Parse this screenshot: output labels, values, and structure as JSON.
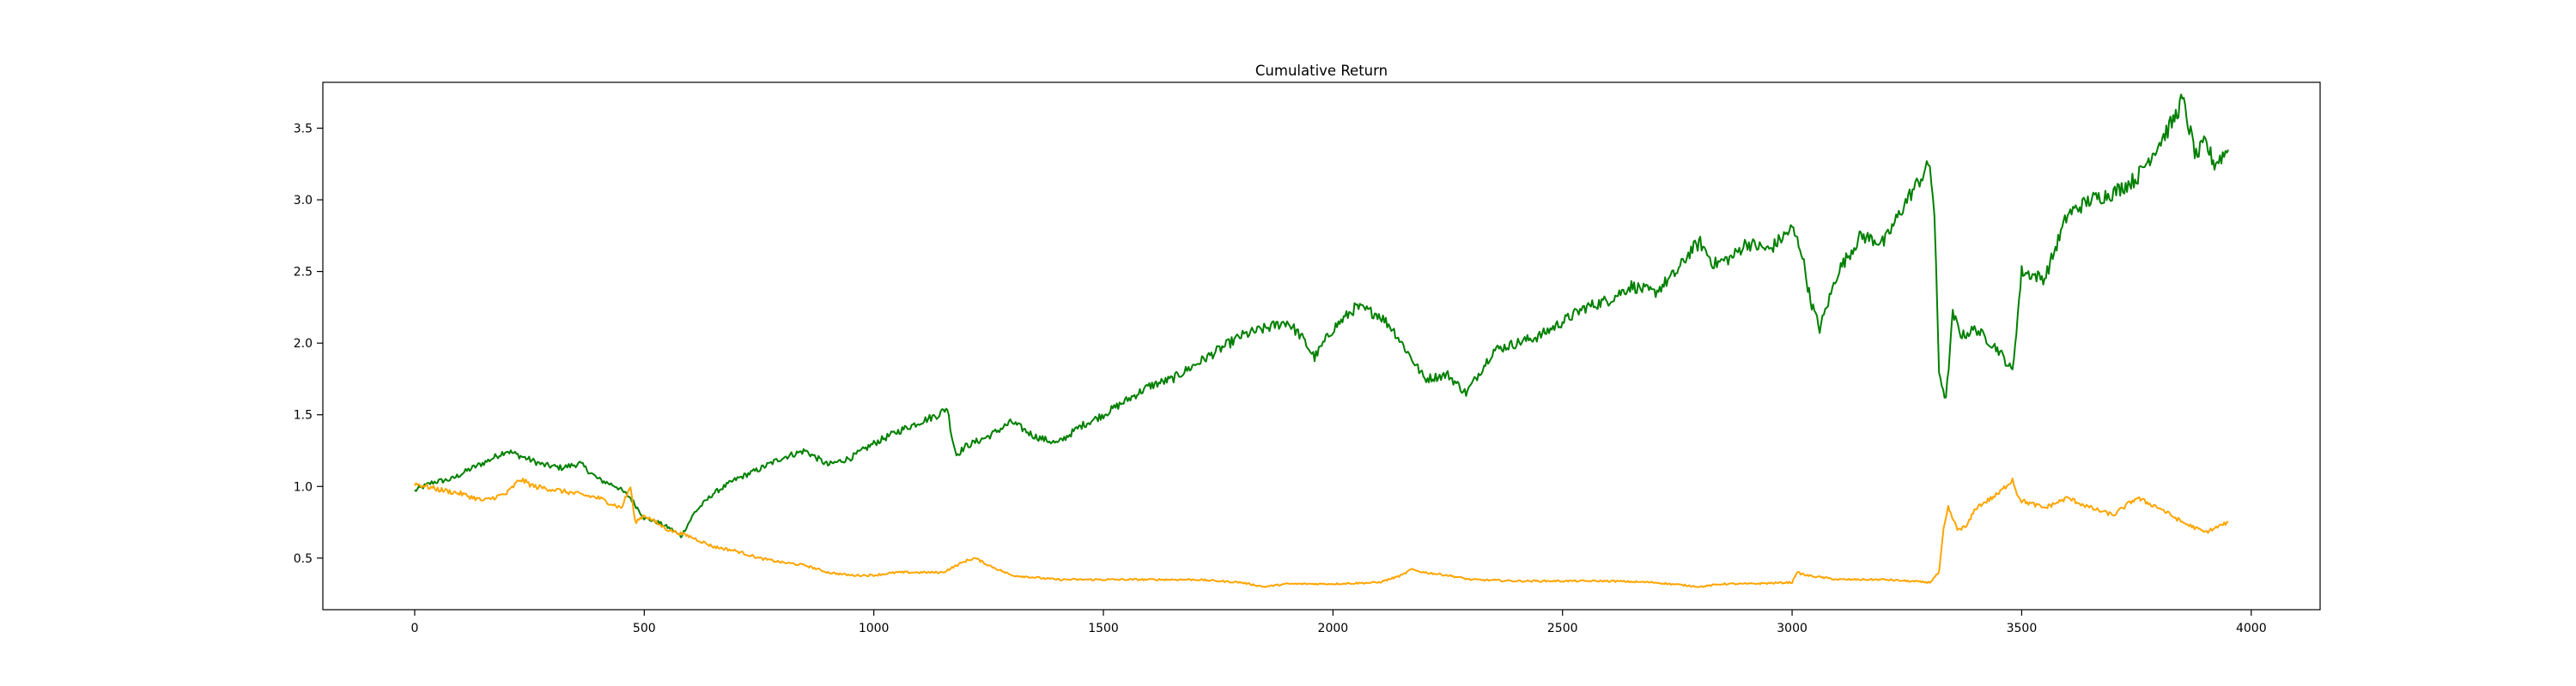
{
  "chart_data": {
    "type": "line",
    "title": "Cumulative Return",
    "xlabel": "",
    "ylabel": "",
    "xlim": [
      -200,
      4150
    ],
    "ylim": [
      0.14,
      3.82
    ],
    "xticks": [
      0,
      500,
      1000,
      1500,
      2000,
      2500,
      3000,
      3500,
      4000
    ],
    "yticks": [
      0.5,
      1.0,
      1.5,
      2.0,
      2.5,
      3.0,
      3.5
    ],
    "grid": false,
    "legend": "none",
    "series": [
      {
        "color": "#008000",
        "x": [
          0,
          40,
          80,
          120,
          160,
          200,
          240,
          280,
          320,
          360,
          400,
          440,
          470,
          500,
          530,
          560,
          580,
          610,
          650,
          700,
          750,
          800,
          850,
          900,
          950,
          1000,
          1050,
          1100,
          1140,
          1160,
          1170,
          1180,
          1200,
          1250,
          1300,
          1350,
          1400,
          1450,
          1500,
          1550,
          1600,
          1650,
          1700,
          1750,
          1800,
          1850,
          1900,
          1930,
          1960,
          2000,
          2050,
          2100,
          2130,
          2160,
          2200,
          2250,
          2290,
          2320,
          2350,
          2400,
          2450,
          2500,
          2550,
          2600,
          2650,
          2700,
          2750,
          2780,
          2800,
          2830,
          2870,
          2900,
          2950,
          3000,
          3020,
          3040,
          3060,
          3100,
          3150,
          3200,
          3250,
          3290,
          3300,
          3310,
          3320,
          3335,
          3350,
          3370,
          3400,
          3450,
          3480,
          3500,
          3550,
          3600,
          3650,
          3700,
          3750,
          3800,
          3830,
          3850,
          3880,
          3900,
          3920,
          3950
        ],
        "values": [
          0.97,
          1.03,
          1.05,
          1.12,
          1.18,
          1.25,
          1.2,
          1.15,
          1.13,
          1.16,
          1.05,
          1.0,
          0.92,
          0.78,
          0.75,
          0.7,
          0.65,
          0.82,
          0.95,
          1.05,
          1.12,
          1.2,
          1.25,
          1.15,
          1.2,
          1.3,
          1.38,
          1.45,
          1.5,
          1.55,
          1.35,
          1.22,
          1.28,
          1.35,
          1.45,
          1.35,
          1.3,
          1.42,
          1.5,
          1.6,
          1.7,
          1.75,
          1.85,
          1.95,
          2.05,
          2.1,
          2.15,
          2.05,
          1.9,
          2.1,
          2.25,
          2.2,
          2.1,
          1.95,
          1.75,
          1.78,
          1.65,
          1.8,
          1.95,
          2.0,
          2.05,
          2.15,
          2.25,
          2.3,
          2.4,
          2.35,
          2.5,
          2.65,
          2.7,
          2.55,
          2.6,
          2.7,
          2.65,
          2.8,
          2.65,
          2.3,
          2.1,
          2.5,
          2.75,
          2.7,
          3.0,
          3.2,
          3.25,
          2.9,
          1.8,
          1.6,
          2.2,
          2.05,
          2.1,
          1.95,
          1.8,
          2.5,
          2.45,
          2.9,
          3.0,
          3.05,
          3.15,
          3.4,
          3.55,
          3.7,
          3.3,
          3.4,
          3.25,
          3.35
        ]
      },
      {
        "color": "#ffa500",
        "x": [
          0,
          50,
          100,
          150,
          200,
          230,
          260,
          300,
          350,
          400,
          450,
          470,
          480,
          500,
          550,
          600,
          650,
          700,
          750,
          800,
          850,
          900,
          950,
          1000,
          1050,
          1100,
          1150,
          1200,
          1220,
          1250,
          1300,
          1400,
          1500,
          1600,
          1700,
          1800,
          1850,
          1900,
          2000,
          2100,
          2150,
          2170,
          2200,
          2250,
          2300,
          2400,
          2500,
          2600,
          2700,
          2800,
          2850,
          2900,
          3000,
          3010,
          3030,
          3100,
          3200,
          3300,
          3320,
          3330,
          3340,
          3360,
          3380,
          3400,
          3450,
          3480,
          3490,
          3500,
          3550,
          3600,
          3650,
          3700,
          3750,
          3800,
          3850,
          3900,
          3950
        ],
        "values": [
          1.02,
          0.98,
          0.95,
          0.9,
          0.95,
          1.05,
          1.0,
          0.98,
          0.95,
          0.92,
          0.85,
          1.0,
          0.75,
          0.8,
          0.7,
          0.65,
          0.58,
          0.55,
          0.5,
          0.47,
          0.45,
          0.4,
          0.38,
          0.38,
          0.4,
          0.4,
          0.4,
          0.48,
          0.5,
          0.45,
          0.38,
          0.35,
          0.35,
          0.35,
          0.35,
          0.33,
          0.3,
          0.32,
          0.32,
          0.33,
          0.38,
          0.42,
          0.4,
          0.38,
          0.35,
          0.34,
          0.34,
          0.34,
          0.33,
          0.3,
          0.32,
          0.32,
          0.33,
          0.4,
          0.38,
          0.35,
          0.35,
          0.33,
          0.4,
          0.7,
          0.85,
          0.7,
          0.72,
          0.85,
          0.95,
          1.05,
          0.95,
          0.9,
          0.85,
          0.92,
          0.85,
          0.8,
          0.92,
          0.85,
          0.75,
          0.68,
          0.75
        ]
      }
    ]
  }
}
